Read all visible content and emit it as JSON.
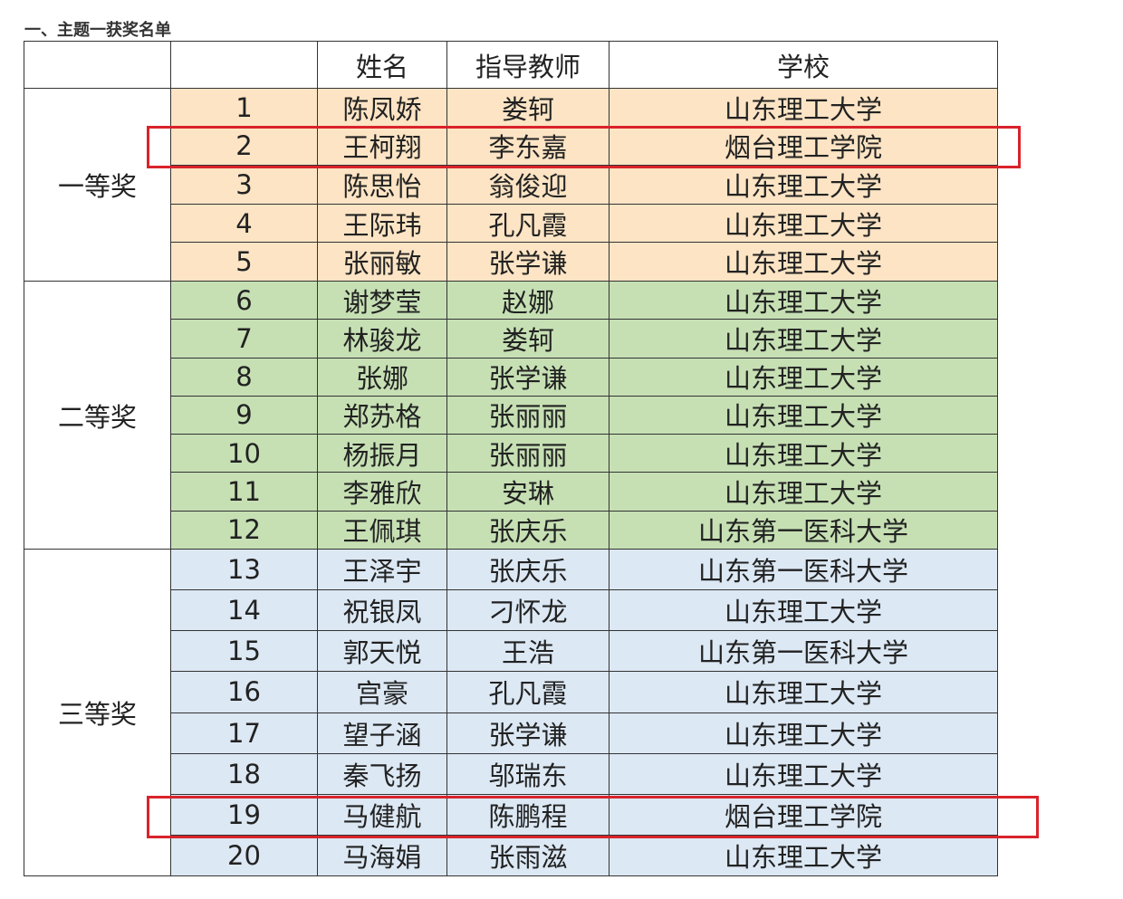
{
  "title": "一、主题一获奖名单",
  "table": {
    "header": [
      "姓名",
      "指导教师",
      "学校"
    ],
    "groups": [
      {
        "award": "一等奖",
        "color": "#fce4c4",
        "rows": [
          [
            1,
            "陈凤娇",
            "娄轲",
            "山东理工大学"
          ],
          [
            2,
            "王柯翔",
            "李东嘉",
            "烟台理工学院"
          ],
          [
            3,
            "陈思怡",
            "翁俊迎",
            "山东理工大学"
          ],
          [
            4,
            "王际玮",
            "孔凡霞",
            "山东理工大学"
          ],
          [
            5,
            "张丽敏",
            "张学谦",
            "山东理工大学"
          ]
        ]
      },
      {
        "award": "二等奖",
        "color": "#c6e0b4",
        "rows": [
          [
            6,
            "谢梦莹",
            "赵娜",
            "山东理工大学"
          ],
          [
            7,
            "林骏龙",
            "娄轲",
            "山东理工大学"
          ],
          [
            8,
            "张娜",
            "张学谦",
            "山东理工大学"
          ],
          [
            9,
            "郑苏格",
            "张丽丽",
            "山东理工大学"
          ],
          [
            10,
            "杨振月",
            "张丽丽",
            "山东理工大学"
          ],
          [
            11,
            "李雅欣",
            "安琳",
            "山东理工大学"
          ],
          [
            12,
            "王佩琪",
            "张庆乐",
            "山东第一医科大学"
          ]
        ]
      },
      {
        "award": "三等奖",
        "color": "#dce8f4",
        "rows": [
          [
            13,
            "王泽宇",
            "张庆乐",
            "山东第一医科大学"
          ],
          [
            14,
            "祝银凤",
            "刁怀龙",
            "山东理工大学"
          ],
          [
            15,
            "郭天悦",
            "王浩",
            "山东第一医科大学"
          ],
          [
            16,
            "宫豪",
            "孔凡霞",
            "山东理工大学"
          ],
          [
            17,
            "望子涵",
            "张学谦",
            "山东理工大学"
          ],
          [
            18,
            "秦飞扬",
            "邬瑞东",
            "山东理工大学"
          ],
          [
            19,
            "马健航",
            "陈鹏程",
            "烟台理工学院"
          ],
          [
            20,
            "马海娟",
            "张雨滋",
            "山东理工大学"
          ]
        ]
      }
    ]
  }
}
